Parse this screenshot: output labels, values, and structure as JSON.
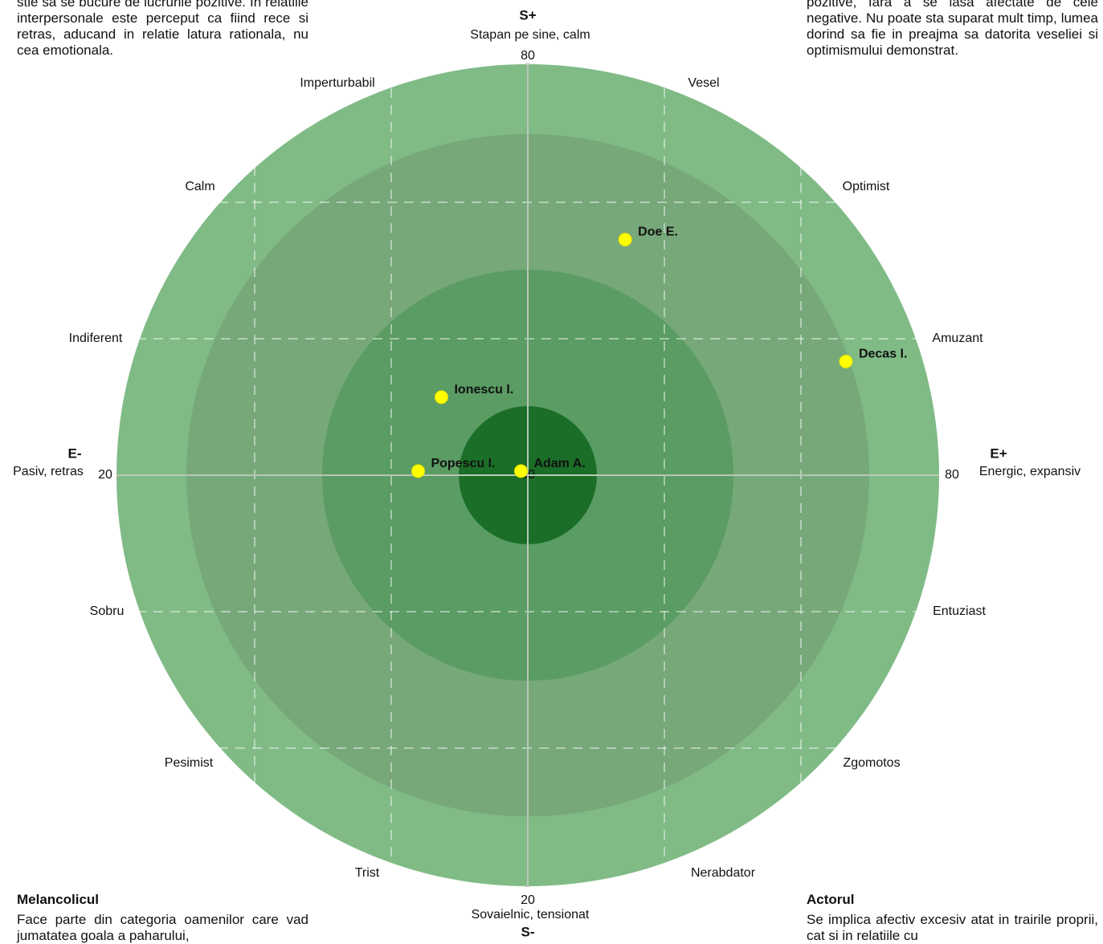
{
  "texts": {
    "top_left": "stie sa se bucure de lucrurile pozitive. In relatiile interpersonale este perceput ca fiind rece si retras, aducand in relatie latura rationala, nu cea emotionala.",
    "top_right": "pozitive, fara a se lasa afectate de cele negative. Nu poate sta suparat mult timp, lumea dorind sa fie in preajma sa datorita veseliei si optimismului demonstrat.",
    "bottom_left_title": "Melancolicul",
    "bottom_left": "Face parte din categoria oamenilor care vad jumatatea goala a paharului,",
    "bottom_right_title": "Actorul",
    "bottom_right": "Se implica afectiv excesiv atat in trairile proprii, cat si in relatiile cu"
  },
  "chart_data": {
    "type": "scatter",
    "y_axis_top": "S+",
    "y_axis_top_label": "Stapan pe sine, calm",
    "y_axis_bottom": "S-",
    "y_axis_bottom_label": "Sovaielnic, tensionat",
    "x_axis_left": "E-",
    "x_axis_left_label": "Pasiv, retras",
    "x_axis_right": "E+",
    "x_axis_right_label": "Energic, expansiv",
    "xlim": [
      20,
      80
    ],
    "ylim": [
      20,
      80
    ],
    "xticks": [
      20,
      50,
      80
    ],
    "yticks": [
      20,
      80
    ],
    "traits": [
      "Imperturbabil",
      "Vesel",
      "Calm",
      "Optimist",
      "Indiferent",
      "Amuzant",
      "Sobru",
      "Entuziast",
      "Pesimist",
      "Zgomotos",
      "Trist",
      "Nerabdator"
    ],
    "color": "#ffff00",
    "points": {
      "names": [
        "Doe E.",
        "Decas I.",
        "Ionescu I.",
        "Popescu I.",
        "Adam A."
      ],
      "x": [
        57.1,
        73.2,
        43.7,
        42.0,
        49.5
      ],
      "y": [
        67.2,
        58.3,
        55.7,
        50.3,
        50.3
      ]
    }
  }
}
